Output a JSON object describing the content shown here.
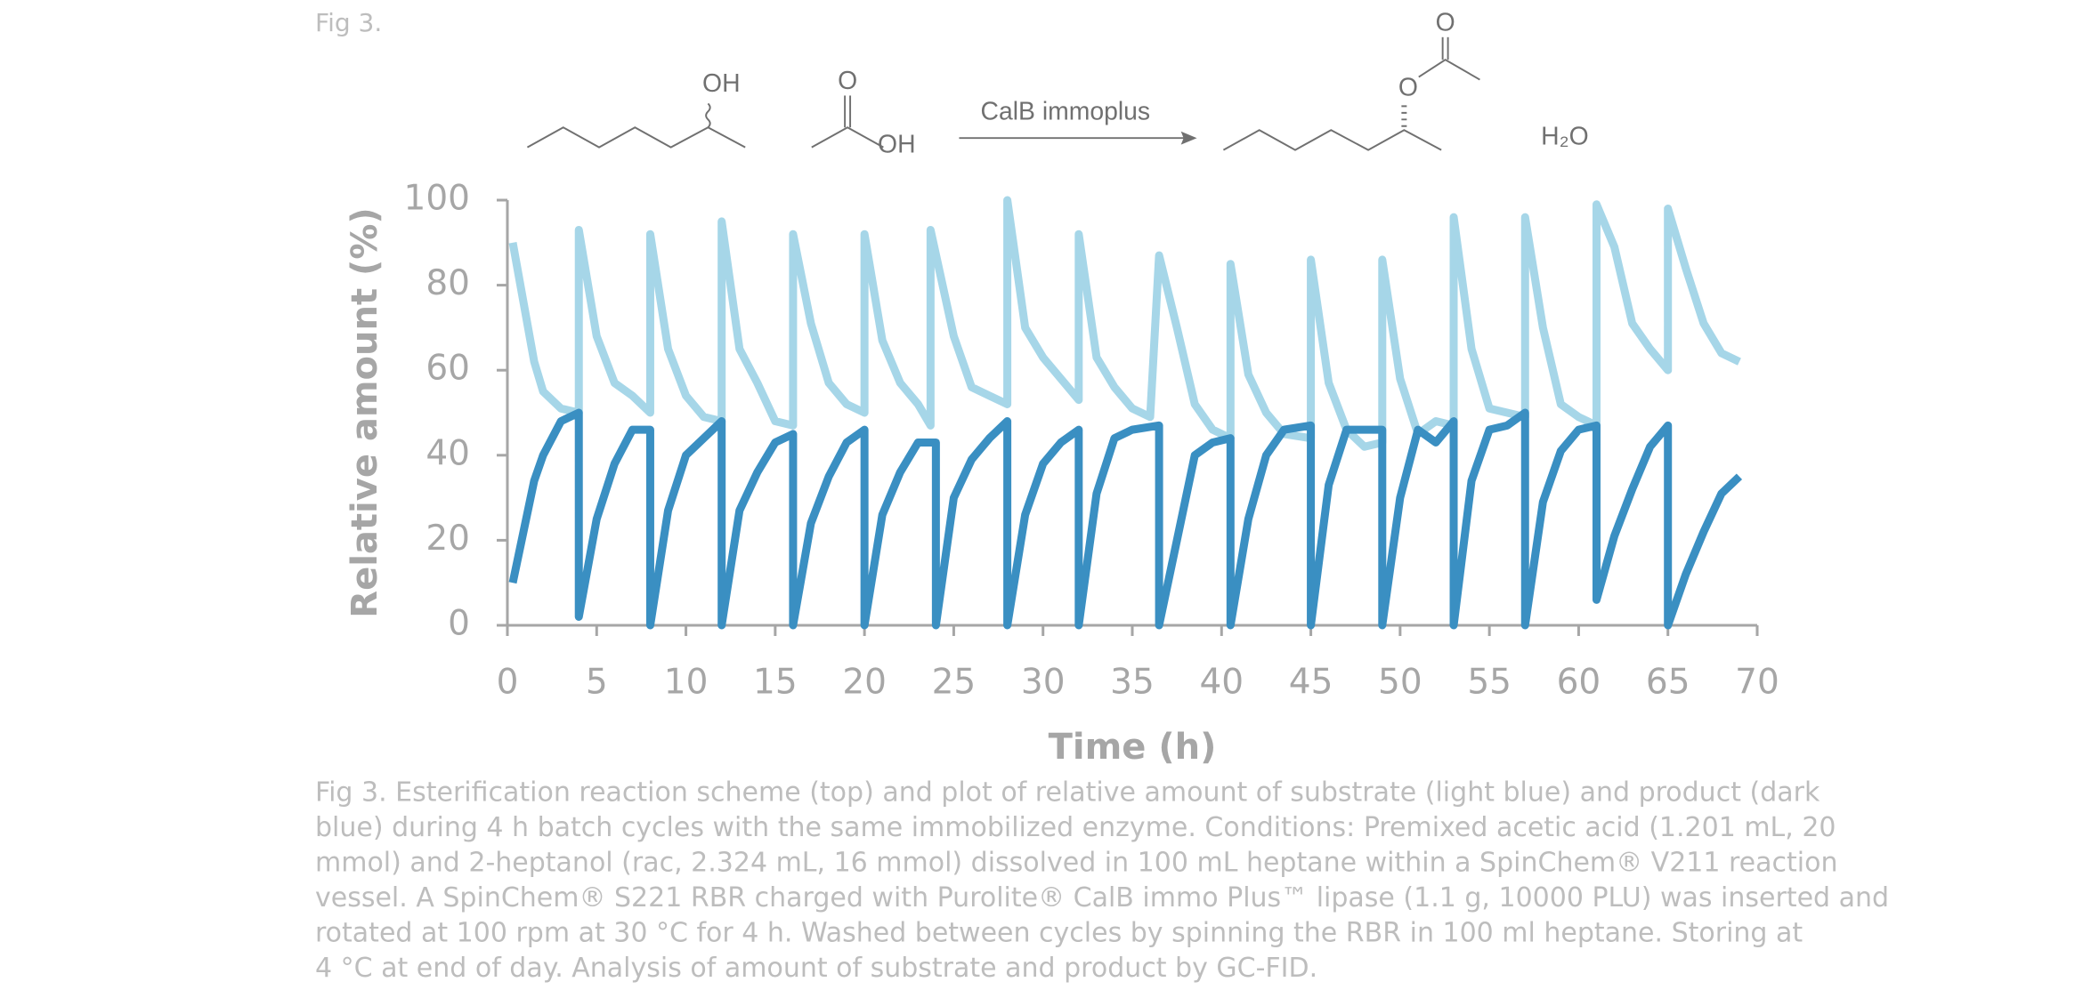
{
  "figure_label": "Fig 3.",
  "scheme": {
    "reactant_oh": "OH",
    "acid_o": "O",
    "acid_oh": "OH",
    "catalyst": "CalB immoplus",
    "ester_o1": "O",
    "ester_o2": "O",
    "water": "H₂O"
  },
  "chart_data": {
    "type": "line",
    "xlabel": "Time (h)",
    "ylabel": "Relative amount (%)",
    "xlim": [
      0,
      70
    ],
    "ylim": [
      0,
      100
    ],
    "xticks": [
      0,
      5,
      10,
      15,
      20,
      25,
      30,
      35,
      40,
      45,
      50,
      55,
      60,
      65,
      70
    ],
    "yticks": [
      0,
      20,
      40,
      60,
      80,
      100
    ],
    "series": [
      {
        "color": "#a6d6e8",
        "x": [
          0.3,
          1.5,
          2,
          3,
          4,
          4,
          5,
          6,
          7,
          8,
          8,
          9,
          10,
          11,
          12,
          12,
          13,
          14,
          15,
          16,
          16,
          17,
          18,
          19,
          20,
          20,
          21,
          22,
          23,
          23.7,
          23.7,
          25,
          26,
          27,
          28,
          28,
          29,
          30,
          31,
          32,
          32,
          33,
          34,
          35,
          36,
          36.5,
          37.5,
          38.5,
          39.5,
          40.5,
          40.5,
          41.5,
          42.5,
          43.5,
          45,
          45,
          46,
          47,
          48,
          49,
          49,
          50,
          51,
          52,
          53,
          53,
          54,
          55,
          56,
          57,
          57,
          58,
          59,
          60,
          61,
          61,
          62,
          63,
          64,
          65,
          65,
          66,
          67,
          68,
          69
        ],
        "values": [
          90,
          62,
          55,
          51,
          50,
          93,
          68,
          57,
          54,
          50,
          92,
          65,
          54,
          49,
          48,
          95,
          65,
          57,
          48,
          47,
          92,
          71,
          57,
          52,
          50,
          92,
          67,
          57,
          52,
          47,
          93,
          68,
          56,
          54,
          52,
          100,
          70,
          63,
          58,
          53,
          92,
          63,
          56,
          51,
          49,
          87,
          70,
          52,
          46,
          44,
          85,
          59,
          50,
          45,
          44,
          86,
          57,
          46,
          42,
          43,
          86,
          58,
          45,
          48,
          47,
          96,
          65,
          51,
          50,
          49,
          96,
          70,
          52,
          49,
          47,
          99,
          89,
          71,
          65,
          60,
          98,
          84,
          71,
          64,
          62
        ]
      },
      {
        "color": "#3a8fc2",
        "x": [
          0.3,
          1.5,
          2,
          3,
          4,
          4,
          5,
          6,
          7,
          8,
          8,
          9,
          10,
          11,
          12,
          12,
          13,
          14,
          15,
          16,
          16,
          17,
          18,
          19,
          20,
          20,
          21,
          22,
          23,
          24,
          24,
          25,
          26,
          27,
          28,
          28,
          29,
          30,
          31,
          32,
          32,
          33,
          34,
          35,
          36.5,
          36.5,
          37.5,
          38.5,
          39.5,
          40.5,
          40.5,
          41.5,
          42.5,
          43.5,
          45,
          45,
          46,
          47,
          48,
          49,
          49,
          50,
          51,
          52,
          53,
          53,
          54,
          55,
          56,
          57,
          57,
          58,
          59,
          60,
          61,
          61,
          62,
          63,
          64,
          65,
          65,
          66,
          67,
          68,
          69
        ],
        "values": [
          10,
          34,
          40,
          48,
          50,
          2,
          25,
          38,
          46,
          46,
          0,
          27,
          40,
          44,
          48,
          0,
          27,
          36,
          43,
          45,
          0,
          24,
          35,
          43,
          46,
          0,
          26,
          36,
          43,
          43,
          0,
          30,
          39,
          44,
          48,
          0,
          26,
          38,
          43,
          46,
          0,
          31,
          44,
          46,
          47,
          0,
          20,
          40,
          43,
          44,
          0,
          25,
          40,
          46,
          47,
          0,
          33,
          46,
          46,
          46,
          0,
          30,
          46,
          43,
          48,
          0,
          34,
          46,
          47,
          50,
          0,
          29,
          41,
          46,
          47,
          6,
          21,
          32,
          42,
          47,
          0,
          12,
          22,
          31,
          35
        ]
      }
    ]
  },
  "caption": [
    "Fig 3. Esterification reaction scheme (top) and plot of relative amount of substrate (light blue) and product (dark",
    "blue) during 4 h batch cycles with the same immobilized enzyme. Conditions: Premixed acetic acid (1.201 mL, 20",
    "mmol) and 2-heptanol (rac, 2.324 mL, 16 mmol) dissolved in 100 mL heptane within a SpinChem® V211 reaction",
    "vessel. A SpinChem® S221 RBR charged with Purolite® CalB immo Plus™ lipase (1.1 g, 10000 PLU) was inserted and",
    "rotated at 100 rpm at 30 °C for 4 h. Washed between cycles by spinning the RBR in 100 ml heptane. Storing at",
    "4 °C at end of day. Analysis of amount of substrate and product by GC-FID."
  ]
}
